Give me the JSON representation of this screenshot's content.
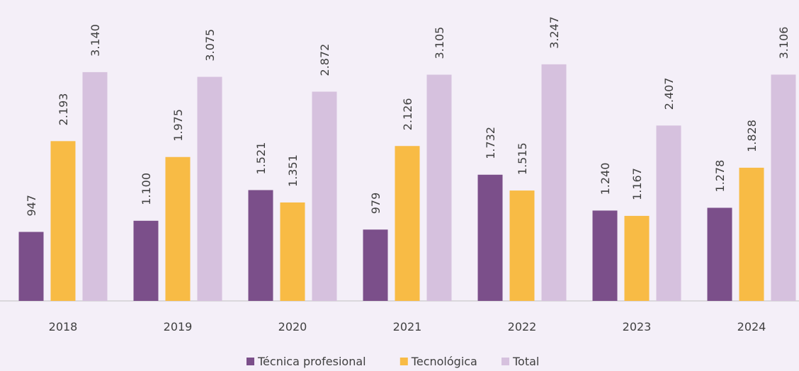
{
  "chart_data": {
    "type": "bar",
    "categories": [
      "2018",
      "2019",
      "2020",
      "2021",
      "2022",
      "2023",
      "2024"
    ],
    "series": [
      {
        "name": "Técnica profesional",
        "color": "#7b4f8a",
        "values": [
          947,
          1100,
          1521,
          979,
          1732,
          1240,
          1278
        ],
        "value_labels": [
          "947",
          "1.100",
          "1.521",
          "979",
          "1.732",
          "1.240",
          "1.278"
        ]
      },
      {
        "name": "Tecnológica",
        "color": "#f8bb45",
        "values": [
          2193,
          1975,
          1351,
          2126,
          1515,
          1167,
          1828
        ],
        "value_labels": [
          "2.193",
          "1.975",
          "1.351",
          "2.126",
          "1.515",
          "1.167",
          "1.828"
        ]
      },
      {
        "name": "Total",
        "color": "#d6c1de",
        "values": [
          3140,
          3075,
          2872,
          3105,
          3247,
          2407,
          3106
        ],
        "value_labels": [
          "3.140",
          "3.075",
          "2.872",
          "3.105",
          "3.247",
          "2.407",
          "3.106"
        ]
      }
    ],
    "ylim": [
      0,
      4130
    ],
    "legend": "bottom"
  }
}
